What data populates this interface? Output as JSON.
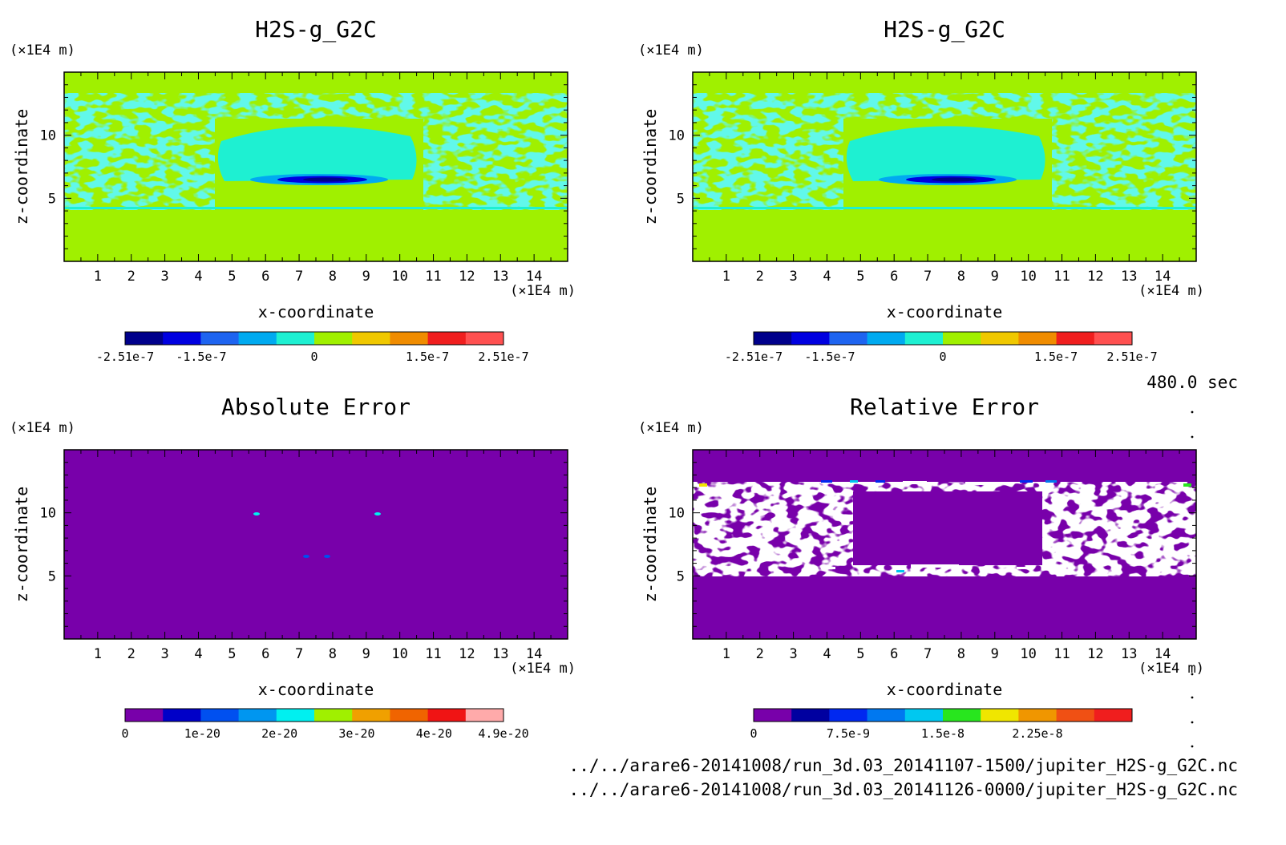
{
  "chart_data": [
    {
      "type": "heatmap",
      "title": "H2S-g_G2C",
      "xlabel": "x-coordinate",
      "ylabel": "z-coordinate",
      "x_unit": "(×1E4 m)",
      "y_unit": "(×1E4 m)",
      "xlim": [
        0,
        15
      ],
      "ylim": [
        0,
        15
      ],
      "x_ticks": [
        "1",
        "2",
        "3",
        "4",
        "5",
        "6",
        "7",
        "8",
        "9",
        "10",
        "11",
        "12",
        "13",
        "14"
      ],
      "y_ticks": [
        "5",
        "10"
      ],
      "colorbar": {
        "colors": [
          "#00008b",
          "#0000e0",
          "#1e64f0",
          "#00aaf0",
          "#1ef0d2",
          "#a0f000",
          "#f0c800",
          "#f08c00",
          "#f01e1e",
          "#ff5050"
        ],
        "labels": [
          "-2.51e-7",
          "-1.5e-7",
          "0",
          "1.5e-7",
          "2.51e-7"
        ],
        "label_values": [
          -2.51e-07,
          -1.5e-07,
          0,
          1.5e-07,
          2.51e-07
        ],
        "range": [
          -2.51e-07,
          2.51e-07
        ]
      }
    },
    {
      "type": "heatmap",
      "title": "H2S-g_G2C",
      "xlabel": "x-coordinate",
      "ylabel": "z-coordinate",
      "x_unit": "(×1E4 m)",
      "y_unit": "(×1E4 m)",
      "xlim": [
        0,
        15
      ],
      "ylim": [
        0,
        15
      ],
      "x_ticks": [
        "1",
        "2",
        "3",
        "4",
        "5",
        "6",
        "7",
        "8",
        "9",
        "10",
        "11",
        "12",
        "13",
        "14"
      ],
      "y_ticks": [
        "5",
        "10"
      ],
      "colorbar": {
        "colors": [
          "#00008b",
          "#0000e0",
          "#1e64f0",
          "#00aaf0",
          "#1ef0d2",
          "#a0f000",
          "#f0c800",
          "#f08c00",
          "#f01e1e",
          "#ff5050"
        ],
        "labels": [
          "-2.51e-7",
          "-1.5e-7",
          "0",
          "1.5e-7",
          "2.51e-7"
        ],
        "label_values": [
          -2.51e-07,
          -1.5e-07,
          0,
          1.5e-07,
          2.51e-07
        ],
        "range": [
          -2.51e-07,
          2.51e-07
        ]
      }
    },
    {
      "type": "heatmap",
      "title": "Absolute Error",
      "xlabel": "x-coordinate",
      "ylabel": "z-coordinate",
      "x_unit": "(×1E4 m)",
      "y_unit": "(×1E4 m)",
      "xlim": [
        0,
        15
      ],
      "ylim": [
        0,
        15
      ],
      "x_ticks": [
        "1",
        "2",
        "3",
        "4",
        "5",
        "6",
        "7",
        "8",
        "9",
        "10",
        "11",
        "12",
        "13",
        "14"
      ],
      "y_ticks": [
        "5",
        "10"
      ],
      "colorbar": {
        "colors": [
          "#7800aa",
          "#0000c8",
          "#0050f0",
          "#0096f0",
          "#00f0f0",
          "#a0f000",
          "#f0a000",
          "#f06400",
          "#f01414",
          "#ffaaaa"
        ],
        "labels": [
          "0",
          "1e-20",
          "2e-20",
          "3e-20",
          "4e-20",
          "4.9e-20"
        ],
        "label_values": [
          0,
          1e-20,
          2e-20,
          3e-20,
          4e-20,
          4.9e-20
        ],
        "range": [
          0,
          4.9e-20
        ]
      }
    },
    {
      "type": "heatmap",
      "title": "Relative Error",
      "xlabel": "x-coordinate",
      "ylabel": "z-coordinate",
      "x_unit": "(×1E4 m)",
      "y_unit": "(×1E4 m)",
      "xlim": [
        0,
        15
      ],
      "ylim": [
        0,
        15
      ],
      "x_ticks": [
        "1",
        "2",
        "3",
        "4",
        "5",
        "6",
        "7",
        "8",
        "9",
        "10",
        "11",
        "12",
        "13",
        "14"
      ],
      "y_ticks": [
        "5",
        "10"
      ],
      "colorbar": {
        "colors": [
          "#7800aa",
          "#0000a0",
          "#0028f0",
          "#0078f0",
          "#00c8f0",
          "#28e61e",
          "#f0e600",
          "#f09600",
          "#f05014",
          "#f01e1e"
        ],
        "labels": [
          "0",
          "7.5e-9",
          "1.5e-8",
          "2.25e-8"
        ],
        "label_values": [
          0,
          7.5e-09,
          1.5e-08,
          2.25e-08
        ],
        "range": [
          0,
          3e-08
        ]
      }
    }
  ],
  "time_label": "480.0 sec",
  "files": [
    "../../arare6-20141008/run_3d.03_20141107-1500/jupiter_H2S-g_G2C.nc",
    "../../arare6-20141008/run_3d.03_20141126-0000/jupiter_H2S-g_G2C.nc"
  ],
  "colors": {
    "field_background": "#a0f000",
    "field_turbulence": "#1ef0d2",
    "field_core_dark": "#00008b",
    "error_background": "#7800aa",
    "relative_error_dots": "#ffffff"
  }
}
